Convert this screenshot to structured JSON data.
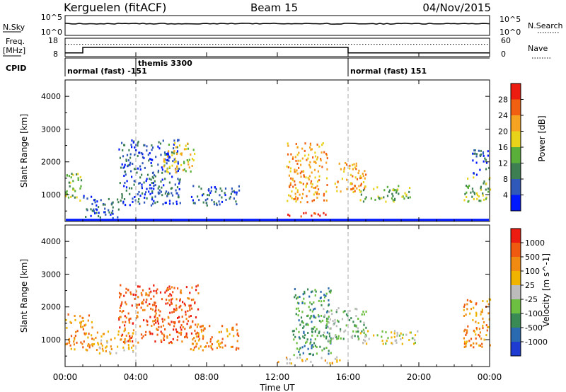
{
  "header": {
    "station": "Kerguelen (fitACF)",
    "beam": "Beam 15",
    "date": "04/Nov/2015"
  },
  "noise_panel": {
    "left_label": "N.Sky",
    "right_label": "N.Search",
    "left_ticks": [
      "10^5",
      "10^0"
    ],
    "right_ticks": [
      "10^5",
      "10^0"
    ]
  },
  "freq_panel": {
    "left_label_line1": "Freq.",
    "left_label_line2": "[MHz]",
    "right_label": "Nave",
    "left_ticks": [
      "18",
      "8"
    ],
    "right_ticks": [
      "60",
      "0"
    ],
    "frequency_mhz": [
      {
        "start_hour": 0,
        "end_hour": 1,
        "value": 10
      },
      {
        "start_hour": 1,
        "end_hour": 16,
        "value": 13
      },
      {
        "start_hour": 16,
        "end_hour": 24,
        "value": 10
      }
    ],
    "nave_level": 40
  },
  "cpid_panel": {
    "label": "CPID",
    "segments": [
      {
        "start_hour": 0,
        "text": "normal (fast) -151"
      },
      {
        "start_hour": 4,
        "text": "themis 3300"
      },
      {
        "start_hour": 16,
        "text": "normal (fast) 151"
      }
    ]
  },
  "x_axis": {
    "title": "Time UT",
    "ticks": [
      "00:00",
      "04:00",
      "08:00",
      "12:00",
      "16:00",
      "20:00",
      "00:00"
    ],
    "range_hours": [
      0,
      24
    ]
  },
  "chart_data": [
    {
      "type": "heatmap",
      "title": "",
      "xlabel": "",
      "ylabel": "Slant Range [km]",
      "xlim": [
        0,
        24
      ],
      "ylim": [
        180,
        4500
      ],
      "yticks": [
        1000,
        2000,
        3000,
        4000
      ],
      "colorbar_label": "Power [dB]",
      "colorbar_ticks": [
        "4",
        "8",
        "12",
        "16",
        "20",
        "24",
        "28"
      ],
      "colorbar_colors": [
        "#0019ff",
        "#2f58b8",
        "#3d7f52",
        "#5aaf3a",
        "#e8d21a",
        "#f5a320",
        "#f06010",
        "#ec1c10"
      ],
      "ground_scatter_range_km": 230,
      "regions": [
        {
          "t0": 0.0,
          "t1": 0.9,
          "r0": 700,
          "r1": 1700,
          "level": 3
        },
        {
          "t0": 1.0,
          "t1": 3.0,
          "r0": 300,
          "r1": 1000,
          "level": 1
        },
        {
          "t0": 3.0,
          "t1": 6.5,
          "r0": 700,
          "r1": 2700,
          "level": 1
        },
        {
          "t0": 5.5,
          "t1": 7.3,
          "r0": 1700,
          "r1": 2600,
          "level": 4
        },
        {
          "t0": 7.0,
          "t1": 9.8,
          "r0": 700,
          "r1": 1300,
          "level": 1
        },
        {
          "t0": 12.5,
          "t1": 14.8,
          "r0": 350,
          "r1": 500,
          "level": 7
        },
        {
          "t0": 12.5,
          "t1": 14.8,
          "r0": 800,
          "r1": 2600,
          "level": 5
        },
        {
          "t0": 15.2,
          "t1": 17.0,
          "r0": 1100,
          "r1": 2000,
          "level": 5
        },
        {
          "t0": 16.5,
          "t1": 19.5,
          "r0": 800,
          "r1": 1300,
          "level": 3
        },
        {
          "t0": 22.5,
          "t1": 24.0,
          "r0": 800,
          "r1": 1600,
          "level": 3
        },
        {
          "t0": 23.0,
          "t1": 24.0,
          "r0": 1600,
          "r1": 2400,
          "level": 1
        }
      ]
    },
    {
      "type": "heatmap",
      "title": "",
      "xlabel": "Time UT",
      "ylabel": "Slant Range [km]",
      "xlim": [
        0,
        24
      ],
      "ylim": [
        180,
        4500
      ],
      "yticks": [
        1000,
        2000,
        3000,
        4000
      ],
      "colorbar_label": "Velocity [m s^-1]",
      "colorbar_ticks": [
        "1000",
        "500",
        "100",
        "25",
        "-25",
        "-100",
        "-500",
        "-1000"
      ],
      "colorbar_colors": [
        "#1e3cd2",
        "#2a6ab0",
        "#3a8a55",
        "#6cbf40",
        "#bcbcbc",
        "#f0b400",
        "#f08a10",
        "#f05a10",
        "#ec1c10"
      ],
      "regions": [
        {
          "t0": 0.0,
          "t1": 1.5,
          "r0": 700,
          "r1": 1800,
          "level": 6
        },
        {
          "t0": 1.5,
          "t1": 4.0,
          "r0": 600,
          "r1": 1300,
          "level": 5
        },
        {
          "t0": 3.0,
          "t1": 7.5,
          "r0": 900,
          "r1": 2700,
          "level": 7
        },
        {
          "t0": 7.0,
          "t1": 9.8,
          "r0": 700,
          "r1": 1500,
          "level": 6
        },
        {
          "t0": 12.0,
          "t1": 15.5,
          "r0": 300,
          "r1": 500,
          "level": 5
        },
        {
          "t0": 12.8,
          "t1": 15.0,
          "r0": 500,
          "r1": 2600,
          "level": 2
        },
        {
          "t0": 14.5,
          "t1": 17.0,
          "r0": 1000,
          "r1": 2000,
          "level": 3
        },
        {
          "t0": 16.5,
          "t1": 20.0,
          "r0": 900,
          "r1": 1300,
          "level": 4
        },
        {
          "t0": 22.5,
          "t1": 24.0,
          "r0": 800,
          "r1": 2300,
          "level": 6
        }
      ]
    }
  ],
  "colors": {
    "frame": "#000000",
    "dashed": "#aaaaaa"
  }
}
